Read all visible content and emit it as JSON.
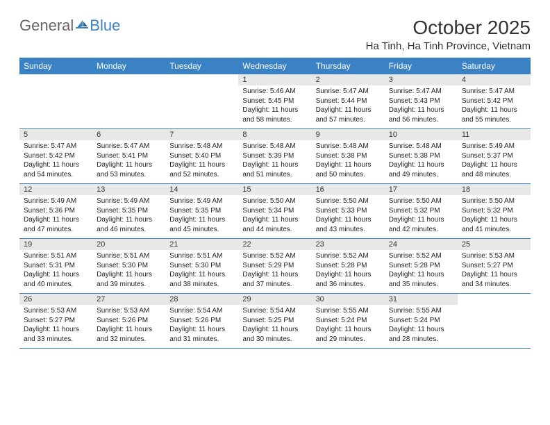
{
  "logo": {
    "text1": "General",
    "text2": "Blue"
  },
  "title": "October 2025",
  "location": "Ha Tinh, Ha Tinh Province, Vietnam",
  "weekdays": [
    "Sunday",
    "Monday",
    "Tuesday",
    "Wednesday",
    "Thursday",
    "Friday",
    "Saturday"
  ],
  "colors": {
    "header_bg": "#3b82c4",
    "daynum_bg": "#e8e8e8",
    "rule": "#3b82c4",
    "text": "#222222"
  },
  "weeks": [
    [
      {
        "n": "",
        "empty": true
      },
      {
        "n": "",
        "empty": true
      },
      {
        "n": "",
        "empty": true
      },
      {
        "n": "1",
        "sunrise": "5:46 AM",
        "sunset": "5:45 PM",
        "daylight": "11 hours and 58 minutes."
      },
      {
        "n": "2",
        "sunrise": "5:47 AM",
        "sunset": "5:44 PM",
        "daylight": "11 hours and 57 minutes."
      },
      {
        "n": "3",
        "sunrise": "5:47 AM",
        "sunset": "5:43 PM",
        "daylight": "11 hours and 56 minutes."
      },
      {
        "n": "4",
        "sunrise": "5:47 AM",
        "sunset": "5:42 PM",
        "daylight": "11 hours and 55 minutes."
      }
    ],
    [
      {
        "n": "5",
        "sunrise": "5:47 AM",
        "sunset": "5:42 PM",
        "daylight": "11 hours and 54 minutes."
      },
      {
        "n": "6",
        "sunrise": "5:47 AM",
        "sunset": "5:41 PM",
        "daylight": "11 hours and 53 minutes."
      },
      {
        "n": "7",
        "sunrise": "5:48 AM",
        "sunset": "5:40 PM",
        "daylight": "11 hours and 52 minutes."
      },
      {
        "n": "8",
        "sunrise": "5:48 AM",
        "sunset": "5:39 PM",
        "daylight": "11 hours and 51 minutes."
      },
      {
        "n": "9",
        "sunrise": "5:48 AM",
        "sunset": "5:38 PM",
        "daylight": "11 hours and 50 minutes."
      },
      {
        "n": "10",
        "sunrise": "5:48 AM",
        "sunset": "5:38 PM",
        "daylight": "11 hours and 49 minutes."
      },
      {
        "n": "11",
        "sunrise": "5:49 AM",
        "sunset": "5:37 PM",
        "daylight": "11 hours and 48 minutes."
      }
    ],
    [
      {
        "n": "12",
        "sunrise": "5:49 AM",
        "sunset": "5:36 PM",
        "daylight": "11 hours and 47 minutes."
      },
      {
        "n": "13",
        "sunrise": "5:49 AM",
        "sunset": "5:35 PM",
        "daylight": "11 hours and 46 minutes."
      },
      {
        "n": "14",
        "sunrise": "5:49 AM",
        "sunset": "5:35 PM",
        "daylight": "11 hours and 45 minutes."
      },
      {
        "n": "15",
        "sunrise": "5:50 AM",
        "sunset": "5:34 PM",
        "daylight": "11 hours and 44 minutes."
      },
      {
        "n": "16",
        "sunrise": "5:50 AM",
        "sunset": "5:33 PM",
        "daylight": "11 hours and 43 minutes."
      },
      {
        "n": "17",
        "sunrise": "5:50 AM",
        "sunset": "5:32 PM",
        "daylight": "11 hours and 42 minutes."
      },
      {
        "n": "18",
        "sunrise": "5:50 AM",
        "sunset": "5:32 PM",
        "daylight": "11 hours and 41 minutes."
      }
    ],
    [
      {
        "n": "19",
        "sunrise": "5:51 AM",
        "sunset": "5:31 PM",
        "daylight": "11 hours and 40 minutes."
      },
      {
        "n": "20",
        "sunrise": "5:51 AM",
        "sunset": "5:30 PM",
        "daylight": "11 hours and 39 minutes."
      },
      {
        "n": "21",
        "sunrise": "5:51 AM",
        "sunset": "5:30 PM",
        "daylight": "11 hours and 38 minutes."
      },
      {
        "n": "22",
        "sunrise": "5:52 AM",
        "sunset": "5:29 PM",
        "daylight": "11 hours and 37 minutes."
      },
      {
        "n": "23",
        "sunrise": "5:52 AM",
        "sunset": "5:28 PM",
        "daylight": "11 hours and 36 minutes."
      },
      {
        "n": "24",
        "sunrise": "5:52 AM",
        "sunset": "5:28 PM",
        "daylight": "11 hours and 35 minutes."
      },
      {
        "n": "25",
        "sunrise": "5:53 AM",
        "sunset": "5:27 PM",
        "daylight": "11 hours and 34 minutes."
      }
    ],
    [
      {
        "n": "26",
        "sunrise": "5:53 AM",
        "sunset": "5:27 PM",
        "daylight": "11 hours and 33 minutes."
      },
      {
        "n": "27",
        "sunrise": "5:53 AM",
        "sunset": "5:26 PM",
        "daylight": "11 hours and 32 minutes."
      },
      {
        "n": "28",
        "sunrise": "5:54 AM",
        "sunset": "5:26 PM",
        "daylight": "11 hours and 31 minutes."
      },
      {
        "n": "29",
        "sunrise": "5:54 AM",
        "sunset": "5:25 PM",
        "daylight": "11 hours and 30 minutes."
      },
      {
        "n": "30",
        "sunrise": "5:55 AM",
        "sunset": "5:24 PM",
        "daylight": "11 hours and 29 minutes."
      },
      {
        "n": "31",
        "sunrise": "5:55 AM",
        "sunset": "5:24 PM",
        "daylight": "11 hours and 28 minutes."
      },
      {
        "n": "",
        "empty": true
      }
    ]
  ],
  "labels": {
    "sunrise": "Sunrise:",
    "sunset": "Sunset:",
    "daylight": "Daylight:"
  }
}
